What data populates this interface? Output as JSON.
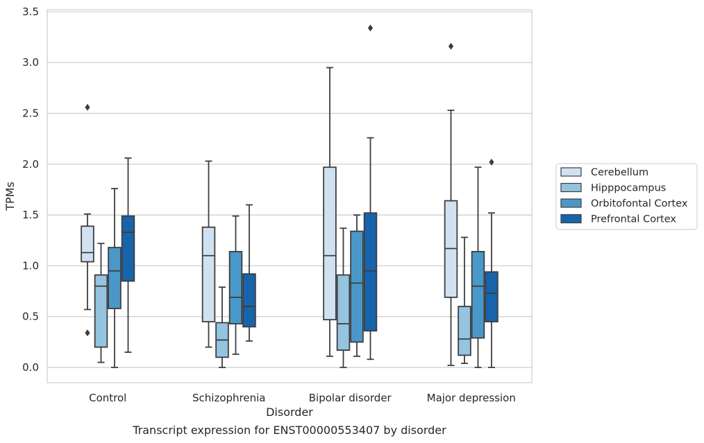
{
  "caption": "Transcript expression for ENST00000553407 by disorder",
  "chart_data": {
    "type": "boxplot",
    "xlabel": "Disorder",
    "ylabel": "TPMs",
    "ylim": [
      -0.15,
      3.52
    ],
    "yticks": [
      "0.0",
      "0.5",
      "1.0",
      "1.5",
      "2.0",
      "2.5",
      "3.0",
      "3.5"
    ],
    "grid": "horizontal",
    "legend_position": "right",
    "categories": [
      "Control",
      "Schizophrenia",
      "Bipolar disorder",
      "Major depression"
    ],
    "series": [
      {
        "name": "Cerebellum",
        "color": "#d0e1f2",
        "boxes": [
          {
            "whislo": 0.57,
            "q1": 1.04,
            "med": 1.13,
            "q3": 1.39,
            "whishi": 1.51,
            "fliers": [
              2.56,
              0.34
            ]
          },
          {
            "whislo": 0.2,
            "q1": 0.45,
            "med": 1.1,
            "q3": 1.38,
            "whishi": 2.03,
            "fliers": []
          },
          {
            "whislo": 0.11,
            "q1": 0.47,
            "med": 1.1,
            "q3": 1.97,
            "whishi": 2.95,
            "fliers": []
          },
          {
            "whislo": 0.02,
            "q1": 0.69,
            "med": 1.17,
            "q3": 1.64,
            "whishi": 2.53,
            "fliers": [
              3.16
            ]
          }
        ]
      },
      {
        "name": "Hipppocampus",
        "color": "#94c4df",
        "boxes": [
          {
            "whislo": 0.05,
            "q1": 0.2,
            "med": 0.8,
            "q3": 0.91,
            "whishi": 1.22,
            "fliers": []
          },
          {
            "whislo": 0.0,
            "q1": 0.1,
            "med": 0.27,
            "q3": 0.44,
            "whishi": 0.79,
            "fliers": []
          },
          {
            "whislo": 0.0,
            "q1": 0.17,
            "med": 0.43,
            "q3": 0.91,
            "whishi": 1.37,
            "fliers": []
          },
          {
            "whislo": 0.04,
            "q1": 0.12,
            "med": 0.28,
            "q3": 0.6,
            "whishi": 1.28,
            "fliers": []
          }
        ]
      },
      {
        "name": "Orbitofontal Cortex",
        "color": "#4a98c9",
        "boxes": [
          {
            "whislo": 0.0,
            "q1": 0.58,
            "med": 0.95,
            "q3": 1.18,
            "whishi": 1.76,
            "fliers": []
          },
          {
            "whislo": 0.13,
            "q1": 0.43,
            "med": 0.69,
            "q3": 1.14,
            "whishi": 1.49,
            "fliers": []
          },
          {
            "whislo": 0.11,
            "q1": 0.25,
            "med": 0.83,
            "q3": 1.34,
            "whishi": 1.5,
            "fliers": []
          },
          {
            "whislo": 0.0,
            "q1": 0.29,
            "med": 0.8,
            "q3": 1.14,
            "whishi": 1.97,
            "fliers": []
          }
        ]
      },
      {
        "name": "Prefrontal Cortex",
        "color": "#1764ab",
        "boxes": [
          {
            "whislo": 0.15,
            "q1": 0.85,
            "med": 1.33,
            "q3": 1.49,
            "whishi": 2.06,
            "fliers": []
          },
          {
            "whislo": 0.26,
            "q1": 0.4,
            "med": 0.6,
            "q3": 0.92,
            "whishi": 1.6,
            "fliers": []
          },
          {
            "whislo": 0.08,
            "q1": 0.36,
            "med": 0.95,
            "q3": 1.52,
            "whishi": 2.26,
            "fliers": [
              3.34
            ]
          },
          {
            "whislo": 0.0,
            "q1": 0.45,
            "med": 0.73,
            "q3": 0.94,
            "whishi": 1.52,
            "fliers": [
              2.02
            ]
          }
        ]
      }
    ]
  }
}
